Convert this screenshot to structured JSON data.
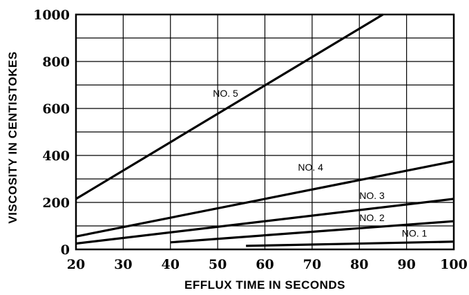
{
  "chart_data": {
    "type": "line",
    "xlabel": "EFFLUX TIME IN SECONDS",
    "ylabel": "VISCOSITY IN CENTISTOKES",
    "xlim": [
      20,
      100
    ],
    "ylim": [
      0,
      1000
    ],
    "x_ticks": [
      "20",
      "30",
      "40",
      "50",
      "60",
      "70",
      "80",
      "90",
      "100"
    ],
    "y_ticks": [
      "0",
      "200",
      "400",
      "600",
      "800",
      "1000"
    ],
    "grid": true,
    "series": [
      {
        "name": "NO. 1",
        "x": [
          56,
          100
        ],
        "y": [
          15,
          33
        ]
      },
      {
        "name": "NO. 2",
        "x": [
          40,
          100
        ],
        "y": [
          30,
          120
        ]
      },
      {
        "name": "NO. 3",
        "x": [
          20,
          100
        ],
        "y": [
          25,
          215
        ]
      },
      {
        "name": "NO. 4",
        "x": [
          20,
          100
        ],
        "y": [
          55,
          375
        ]
      },
      {
        "name": "NO. 5",
        "x": [
          20,
          85
        ],
        "y": [
          215,
          1000
        ]
      }
    ]
  }
}
